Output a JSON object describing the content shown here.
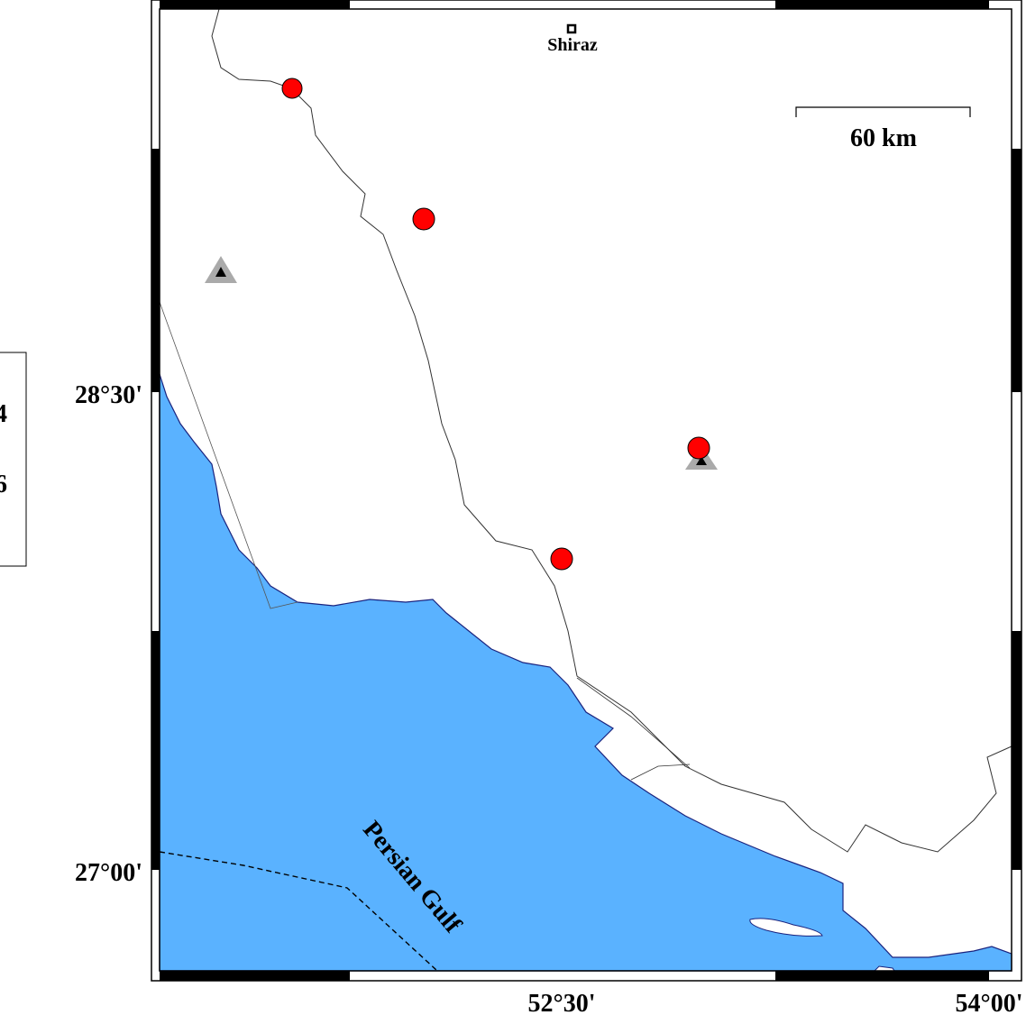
{
  "map": {
    "water_color": "#5ab2ff",
    "event_color": "#ff0000",
    "station_color": "#aaaaaa",
    "lon_labels": [
      "52°30'",
      "54°00'"
    ],
    "lat_labels": [
      "28°30'",
      "27°00'"
    ],
    "city": {
      "name": "Shiraz"
    },
    "sea_label": "Persian Gulf",
    "scale_bar": "60 km",
    "legend_partial": [
      "4",
      "6"
    ],
    "events": [
      {
        "icon": "event-circle"
      },
      {
        "icon": "event-circle"
      },
      {
        "icon": "event-circle"
      },
      {
        "icon": "event-circle"
      }
    ],
    "stations": [
      {
        "icon": "station-triangle"
      },
      {
        "icon": "station-triangle"
      }
    ]
  }
}
